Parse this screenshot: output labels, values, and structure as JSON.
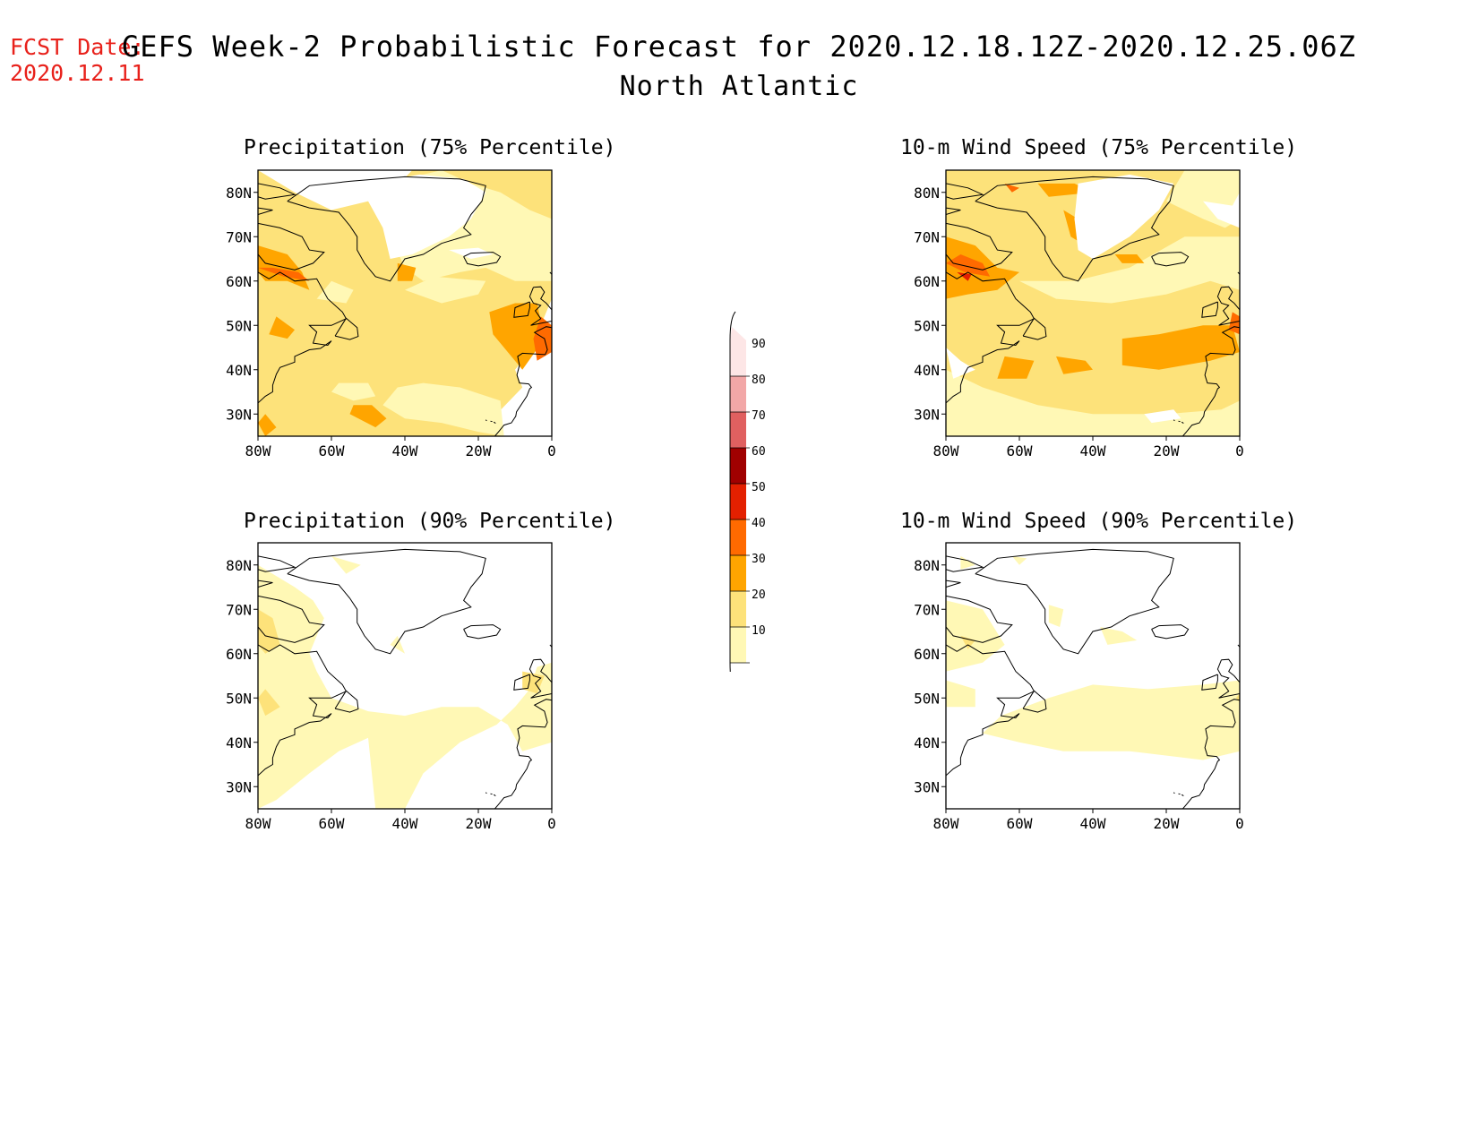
{
  "header": {
    "fcst_label": "FCST Date:",
    "fcst_date": "2020.12.11",
    "title": "GEFS Week-2 Probabilistic Forecast for 2020.12.18.12Z-2020.12.25.06Z",
    "subtitle": "North Atlantic"
  },
  "axes": {
    "lat_ticks": [
      "80N",
      "70N",
      "60N",
      "50N",
      "40N",
      "30N"
    ],
    "lon_ticks": [
      "80W",
      "60W",
      "40W",
      "20W",
      "0"
    ]
  },
  "panels": [
    {
      "id": "precip-75",
      "title": "Precipitation (75% Percentile)"
    },
    {
      "id": "wind-75",
      "title": "10-m Wind Speed (75% Percentile)"
    },
    {
      "id": "precip-90",
      "title": "Precipitation (90% Percentile)"
    },
    {
      "id": "wind-90",
      "title": "10-m Wind Speed (90% Percentile)"
    }
  ],
  "colorbar": {
    "labels": [
      "90",
      "80",
      "70",
      "60",
      "50",
      "40",
      "30",
      "20",
      "10"
    ],
    "colors": [
      "#fde6e6",
      "#f2a7a7",
      "#e06060",
      "#a00000",
      "#e32000",
      "#ff6a00",
      "#ffa500",
      "#fde27a",
      "#fff8b5"
    ]
  },
  "shade_colors": {
    "lt10": "#ffffff",
    "c10": "#fff8b5",
    "c20": "#fde27a",
    "c30": "#ffa500",
    "c40": "#ff6a00",
    "c50": "#e32000"
  }
}
